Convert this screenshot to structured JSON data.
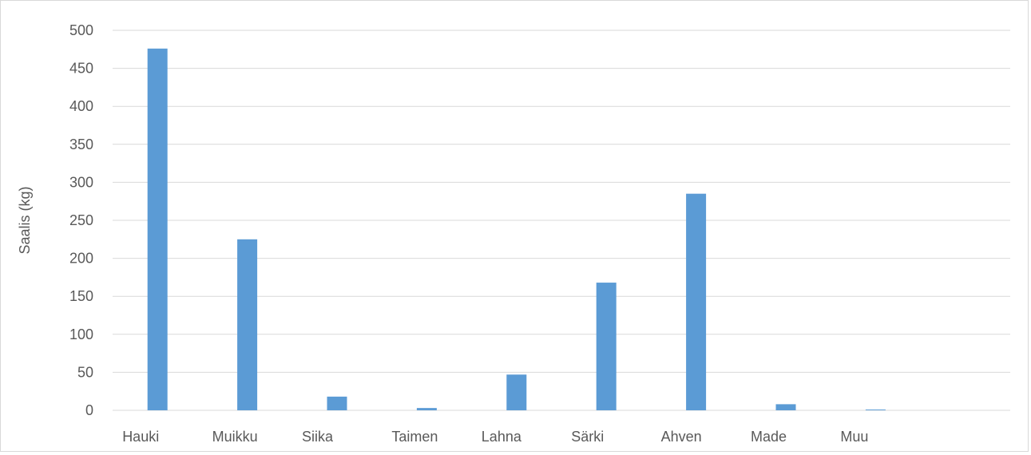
{
  "chart_data": {
    "type": "bar",
    "title": "",
    "xlabel": "",
    "ylabel": "Saalis (kg)",
    "ylim": [
      0,
      500
    ],
    "yticks": [
      0,
      50,
      100,
      150,
      200,
      250,
      300,
      350,
      400,
      450,
      500
    ],
    "grid": true,
    "legend": "none",
    "categories": [
      "Hauki",
      "Muikku",
      "Siika",
      "Taimen",
      "Lahna",
      "Särki",
      "Ahven",
      "Made",
      "Muu"
    ],
    "values": [
      476,
      225,
      18,
      3,
      47,
      168,
      285,
      8,
      1
    ],
    "bar_color": "#5b9bd5",
    "grid_color": "#d9d9d9",
    "text_color": "#595959"
  }
}
